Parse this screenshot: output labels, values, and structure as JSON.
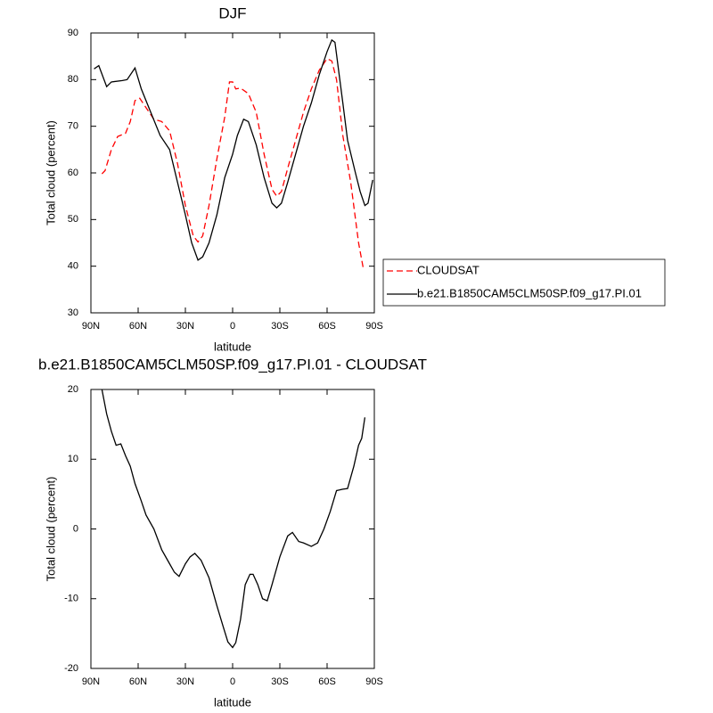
{
  "chart_data": [
    {
      "type": "line",
      "title": "DJF",
      "xlabel": "latitude",
      "ylabel": "Total cloud (percent)",
      "xlim": [
        90,
        -90
      ],
      "xticks": [
        {
          "value": 90,
          "label": "90N"
        },
        {
          "value": 60,
          "label": "60N"
        },
        {
          "value": 30,
          "label": "30N"
        },
        0,
        {
          "value": -30,
          "label": "30S"
        },
        {
          "value": -60,
          "label": "60S"
        },
        {
          "value": -90,
          "label": "90S"
        }
      ],
      "ylim": [
        30,
        90
      ],
      "yticks": [
        30,
        40,
        50,
        60,
        70,
        80,
        90
      ],
      "legend": "right",
      "series": [
        {
          "name": "CLOUDSAT",
          "color": "#ff0000",
          "dashed": true,
          "x": [
            83,
            81,
            77,
            73,
            68,
            65,
            62,
            59,
            55,
            50,
            45,
            40,
            35,
            30,
            25,
            22,
            19,
            15,
            10,
            5,
            2,
            0,
            -2,
            -5,
            -10,
            -15,
            -20,
            -25,
            -28,
            -31,
            -35,
            -40,
            -45,
            -50,
            -55,
            -60,
            -63,
            -66,
            -70,
            -75,
            -80,
            -83
          ],
          "values": [
            59.8,
            60.5,
            65,
            67.8,
            68.5,
            71,
            75.5,
            76,
            74,
            71.5,
            71,
            69,
            62,
            53,
            46.5,
            45.2,
            46.5,
            53,
            63,
            72,
            79.5,
            79.5,
            78,
            78.2,
            77,
            73,
            64,
            56.5,
            55,
            56,
            61,
            67,
            73,
            78,
            82,
            84.5,
            84,
            80,
            68,
            58,
            45,
            39.5
          ]
        },
        {
          "name": "b.e21.B1850CAM5CLM50SP.f09_g17.PI.01",
          "color": "#000000",
          "dashed": false,
          "x": [
            88,
            85,
            80,
            77,
            70,
            67,
            62,
            58,
            52,
            46,
            40,
            35,
            30,
            26,
            22,
            19,
            15,
            10,
            5,
            0,
            -3,
            -7,
            -10,
            -15,
            -20,
            -25,
            -28,
            -31,
            -35,
            -40,
            -45,
            -50,
            -55,
            -60,
            -63,
            -65,
            -70,
            -73,
            -78,
            -81,
            -84,
            -86,
            -89
          ],
          "values": [
            82.3,
            83,
            78.5,
            79.5,
            79.8,
            80,
            82.5,
            78,
            73,
            68,
            65,
            58,
            51,
            45,
            41.3,
            42,
            45,
            51,
            59,
            64,
            68,
            71.5,
            71,
            66,
            59,
            53.5,
            52.5,
            53.5,
            58,
            64,
            70,
            75,
            81,
            86,
            88.5,
            88,
            75,
            67,
            60,
            56,
            53,
            53.5,
            58.5
          ]
        }
      ]
    },
    {
      "type": "line",
      "title": "b.e21.B1850CAM5CLM50SP.f09_g17.PI.01 - CLOUDSAT",
      "xlabel": "latitude",
      "ylabel": "Total cloud (percent)",
      "xlim": [
        90,
        -90
      ],
      "xticks": [
        {
          "value": 90,
          "label": "90N"
        },
        {
          "value": 60,
          "label": "60N"
        },
        {
          "value": 30,
          "label": "30N"
        },
        0,
        {
          "value": -30,
          "label": "30S"
        },
        {
          "value": -60,
          "label": "60S"
        },
        {
          "value": -90,
          "label": "90S"
        }
      ],
      "ylim": [
        -20,
        20
      ],
      "yticks": [
        -20,
        -10,
        0,
        10,
        20
      ],
      "series": [
        {
          "color": "#000000",
          "dashed": false,
          "x": [
            83,
            80,
            77,
            74,
            71,
            68,
            65,
            62,
            58,
            55,
            50,
            45,
            40,
            37,
            34,
            30,
            27,
            24,
            20,
            15,
            10,
            6,
            3,
            0,
            -2,
            -5,
            -8,
            -11,
            -13,
            -16,
            -19,
            -22,
            -25,
            -30,
            -35,
            -38,
            -42,
            -45,
            -50,
            -54,
            -58,
            -62,
            -66,
            -70,
            -73,
            -77,
            -80,
            -82,
            -84
          ],
          "values": [
            20,
            16.5,
            14,
            12,
            12.2,
            10.5,
            9,
            6.5,
            4,
            2,
            0,
            -3,
            -5,
            -6.2,
            -6.8,
            -5,
            -4,
            -3.5,
            -4.5,
            -7,
            -11,
            -14,
            -16.2,
            -17,
            -16.3,
            -13,
            -8,
            -6.5,
            -6.5,
            -8,
            -10,
            -10.3,
            -8,
            -4,
            -1,
            -0.5,
            -1.8,
            -2,
            -2.5,
            -2,
            0,
            2.5,
            5.5,
            5.7,
            5.8,
            9,
            12,
            13,
            16
          ]
        }
      ]
    }
  ]
}
